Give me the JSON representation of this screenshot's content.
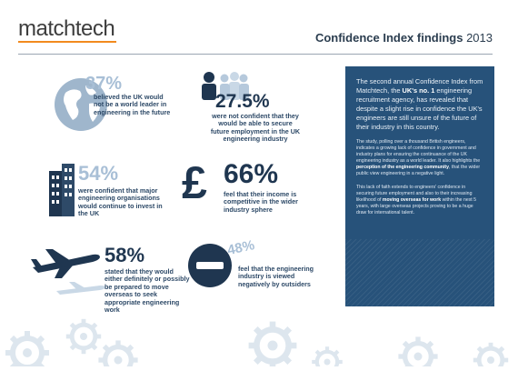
{
  "header": {
    "logo": {
      "part1": "matchtech",
      "part2": ""
    },
    "title": "Confidence Index findings",
    "year": "2013"
  },
  "stats": [
    {
      "value": "37%",
      "caption": "believed the UK would not be a world leader in engineering in the future",
      "icon": "globe-icon"
    },
    {
      "value": "27.5%",
      "caption": "were not confident that they would be able to secure future employment in the UK engineering industry",
      "icon": "people-icon"
    },
    {
      "value": "54%",
      "caption": "were confident that major engineering organisations would continue to invest in the UK",
      "icon": "building-icon"
    },
    {
      "value": "66%",
      "caption": "feel that their income is competitive in the wider industry sphere",
      "icon": "pound-icon"
    },
    {
      "value": "58%",
      "caption": "stated that they would either definitely or possibly be prepared to move overseas to seek appropriate engineering work",
      "icon": "plane-icon"
    },
    {
      "value": "48%",
      "caption": "feel that the engineering industry is viewed negatively by outsiders",
      "icon": "minus-icon"
    }
  ],
  "panel": {
    "intro_pre": "The second annual Confidence Index from Matchtech, the ",
    "intro_bold": "UK's no. 1",
    "intro_post": " engineering recruitment agency, has revealed that despite a slight rise in confidence the UK's engineers are still unsure of the future of their industry in this country.",
    "p1_pre": "The study, polling over a thousand British engineers, indicates a growing lack of confidence in government and industry plans for ensuring the continuance of the UK engineering industry as a world leader. It also highlights the ",
    "p1_bold": "perception of the engineering community",
    "p1_post": ", that the wider public view engineering in a negative light.",
    "p2_pre": "This lack of faith extends to engineers' confidence in securing future employment and also to their increasing likelihood of ",
    "p2_bold": "moving overseas for work",
    "p2_post": " within the next 5 years, with large overseas projects proving to be a huge draw for international talent."
  },
  "colors": {
    "panel_bg": "#27527a",
    "accent_orange": "#f28a1e",
    "dark_navy": "#1f3650",
    "pale_blue": "#a8bfd6"
  }
}
